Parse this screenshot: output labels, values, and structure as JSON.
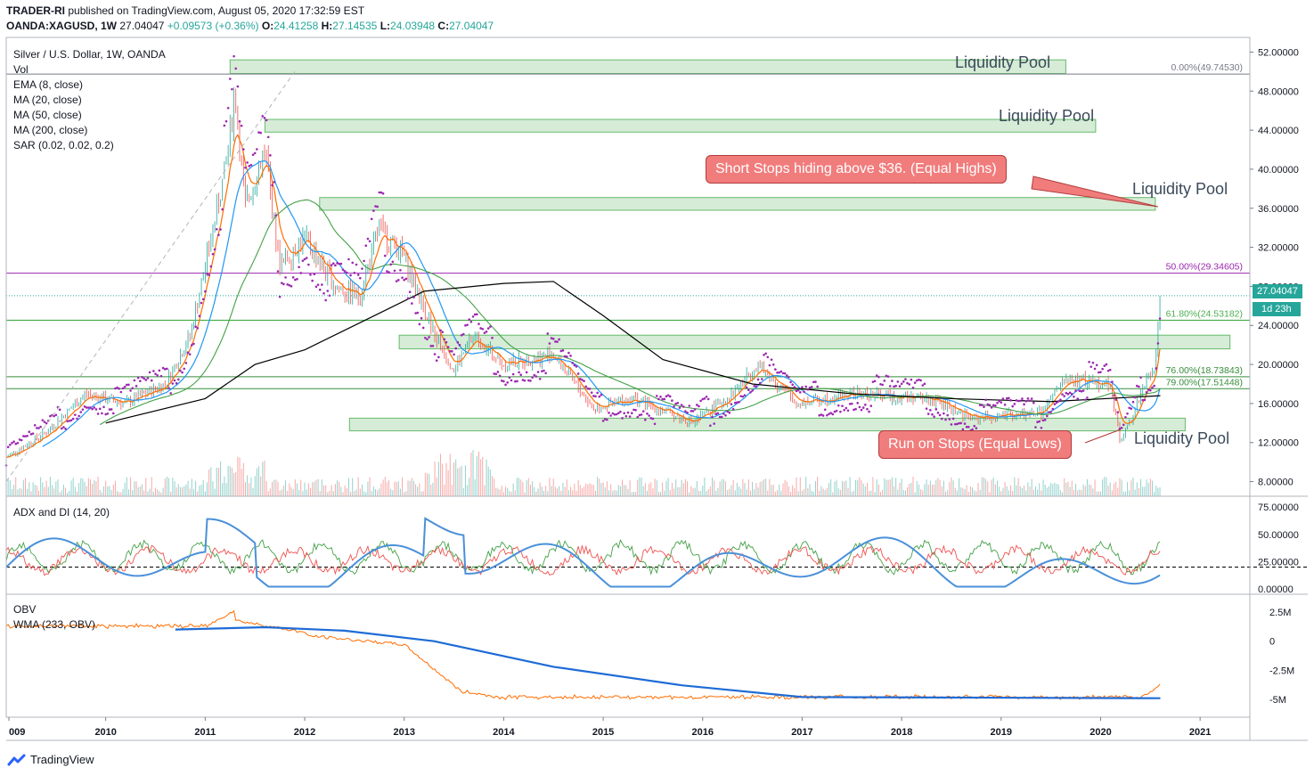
{
  "header": {
    "author": "TRADER-RI",
    "published": "published on TradingView.com, August 05, 2020 17:32:59 EST",
    "symbol": "OANDA:XAGUSD, 1W",
    "last": "27.04047",
    "change": "+0.09573 (+0.36%)",
    "o_label": "O:",
    "o": "24.41258",
    "h_label": "H:",
    "h": "27.14535",
    "l_label": "L:",
    "l": "24.03948",
    "c_label": "C:",
    "c": "27.04047"
  },
  "legend": {
    "title": "Silver / U.S. Dollar, 1W, OANDA",
    "items": [
      "Vol",
      "EMA (8, close)",
      "MA (20, close)",
      "MA (50, close)",
      "MA (200, close)",
      "SAR (0.02, 0.02, 0.2)"
    ]
  },
  "panes": {
    "adx_label": "ADX and DI (14, 20)",
    "obv_label": "OBV",
    "wma_label": "WMA (233, OBV)"
  },
  "annotations": {
    "pool1": "Liquidity Pool",
    "pool2": "Liquidity Pool",
    "pool3": "Liquidity Pool",
    "pool4": "Liquidity Pool",
    "callout_highs": "Short Stops hiding above $36. (Equal Highs)",
    "callout_lows": "Run on Stops (Equal Lows)"
  },
  "fib_levels": [
    {
      "label": "0.00%(49.74530)",
      "value": 49.7453,
      "color": "#787b86"
    },
    {
      "label": "50.00%(29.34605)",
      "value": 29.34605,
      "color": "#9c27b0"
    },
    {
      "label": "61.80%(24.53182)",
      "value": 24.53182,
      "color": "#4caf50"
    },
    {
      "label": "76.00%(18.73843)",
      "value": 18.73843,
      "color": "#388e3c"
    },
    {
      "label": "79.00%(17.51448)",
      "value": 17.51448,
      "color": "#388e3c"
    }
  ],
  "price_tags": {
    "current": "27.04047",
    "countdown": "1d 23h"
  },
  "branding": "TradingView",
  "colors": {
    "up": "#26a69a",
    "down": "#ef5350",
    "ema": "#ff6d00",
    "ma20": "#2196f3",
    "ma50": "#43a047",
    "ma200": "#000000",
    "sar": "#9c27b0",
    "zone_fill": "#c8e6c9",
    "zone_stroke": "#66bb6a"
  },
  "chart_data": {
    "type": "candlestick",
    "title": "Silver / U.S. Dollar, 1W, OANDA",
    "x_ticks": [
      "009",
      "2010",
      "2011",
      "2012",
      "2013",
      "2014",
      "2015",
      "2016",
      "2017",
      "2018",
      "2019",
      "2020",
      "2021"
    ],
    "y_ticks": [
      "52.00000",
      "48.00000",
      "44.00000",
      "40.00000",
      "36.00000",
      "32.00000",
      "28.00000",
      "24.00000",
      "20.00000",
      "16.00000",
      "12.00000",
      "8.00000"
    ],
    "ylim": [
      6.5,
      53.5
    ],
    "close_path": [
      {
        "x": 2009.0,
        "y": 10.5
      },
      {
        "x": 2009.4,
        "y": 13.0
      },
      {
        "x": 2009.8,
        "y": 17.0
      },
      {
        "x": 2010.2,
        "y": 16.0
      },
      {
        "x": 2010.6,
        "y": 18.0
      },
      {
        "x": 2010.85,
        "y": 23.0
      },
      {
        "x": 2011.0,
        "y": 30.0
      },
      {
        "x": 2011.2,
        "y": 40.0
      },
      {
        "x": 2011.3,
        "y": 48.0
      },
      {
        "x": 2011.4,
        "y": 36.0
      },
      {
        "x": 2011.6,
        "y": 42.0
      },
      {
        "x": 2011.75,
        "y": 30.0
      },
      {
        "x": 2012.0,
        "y": 33.0
      },
      {
        "x": 2012.3,
        "y": 28.0
      },
      {
        "x": 2012.55,
        "y": 27.0
      },
      {
        "x": 2012.75,
        "y": 34.0
      },
      {
        "x": 2013.0,
        "y": 31.0
      },
      {
        "x": 2013.3,
        "y": 23.0
      },
      {
        "x": 2013.5,
        "y": 19.5
      },
      {
        "x": 2013.7,
        "y": 23.0
      },
      {
        "x": 2014.0,
        "y": 20.0
      },
      {
        "x": 2014.5,
        "y": 21.0
      },
      {
        "x": 2014.9,
        "y": 15.5
      },
      {
        "x": 2015.3,
        "y": 16.5
      },
      {
        "x": 2015.9,
        "y": 14.0
      },
      {
        "x": 2016.3,
        "y": 17.0
      },
      {
        "x": 2016.55,
        "y": 20.0
      },
      {
        "x": 2016.95,
        "y": 16.0
      },
      {
        "x": 2017.5,
        "y": 17.0
      },
      {
        "x": 2018.3,
        "y": 16.5
      },
      {
        "x": 2018.7,
        "y": 14.5
      },
      {
        "x": 2019.4,
        "y": 15.0
      },
      {
        "x": 2019.65,
        "y": 18.5
      },
      {
        "x": 2020.1,
        "y": 18.0
      },
      {
        "x": 2020.2,
        "y": 12.0
      },
      {
        "x": 2020.45,
        "y": 18.0
      },
      {
        "x": 2020.55,
        "y": 20.0
      },
      {
        "x": 2020.6,
        "y": 27.04
      }
    ],
    "ma200_path": [
      {
        "x": 2010.0,
        "y": 14.0
      },
      {
        "x": 2011.0,
        "y": 16.5
      },
      {
        "x": 2011.5,
        "y": 20.0
      },
      {
        "x": 2012.0,
        "y": 21.5
      },
      {
        "x": 2012.7,
        "y": 25.0
      },
      {
        "x": 2013.2,
        "y": 27.5
      },
      {
        "x": 2014.0,
        "y": 28.3
      },
      {
        "x": 2014.5,
        "y": 28.5
      },
      {
        "x": 2015.0,
        "y": 25.0
      },
      {
        "x": 2015.6,
        "y": 20.5
      },
      {
        "x": 2016.5,
        "y": 18.0
      },
      {
        "x": 2017.5,
        "y": 17.0
      },
      {
        "x": 2018.5,
        "y": 16.5
      },
      {
        "x": 2019.5,
        "y": 16.2
      },
      {
        "x": 2020.6,
        "y": 16.8
      }
    ],
    "liquidity_zones": [
      {
        "x0": 2011.25,
        "x1": 2019.65,
        "y0": 49.8,
        "y1": 51.2
      },
      {
        "x0": 2011.6,
        "x1": 2019.95,
        "y0": 43.8,
        "y1": 45.1
      },
      {
        "x0": 2012.15,
        "x1": 2020.55,
        "y0": 35.8,
        "y1": 37.1
      },
      {
        "x0": 2012.95,
        "x1": 2021.3,
        "y0": 21.6,
        "y1": 23.0
      },
      {
        "x0": 2012.45,
        "x1": 2020.85,
        "y0": 13.2,
        "y1": 14.5
      }
    ],
    "adx_ticks": [
      "75.00000",
      "50.00000",
      "25.00000",
      "0.00000"
    ],
    "adx_threshold": 20,
    "obv_ticks": [
      "2.5M",
      "0",
      "-2.5M",
      "-5M"
    ]
  }
}
